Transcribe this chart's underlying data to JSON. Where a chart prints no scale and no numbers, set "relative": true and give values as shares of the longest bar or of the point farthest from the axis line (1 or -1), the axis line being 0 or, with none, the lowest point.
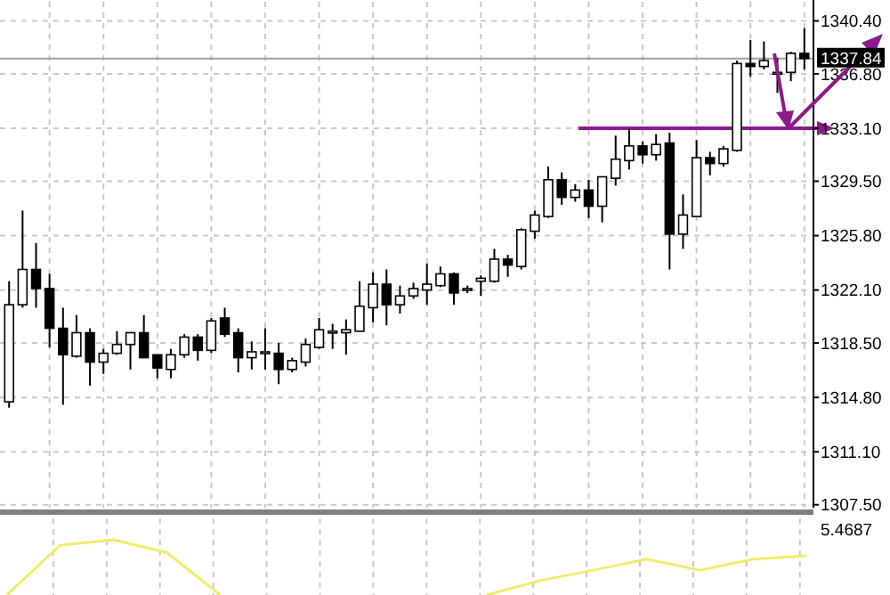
{
  "chart_data": [
    {
      "type": "candlestick",
      "categories": [
        null,
        null,
        null,
        null,
        null,
        null,
        null,
        null,
        null,
        null,
        null,
        null,
        null,
        null,
        null,
        null,
        null,
        null,
        null,
        null,
        null,
        null,
        null,
        null,
        null,
        null,
        null,
        null,
        null,
        null,
        null,
        null,
        null,
        null,
        null,
        null,
        null,
        null,
        null,
        null,
        null,
        null,
        null,
        null,
        null,
        null,
        null,
        null,
        null,
        null,
        null,
        null,
        null,
        null,
        null,
        null,
        null,
        null,
        null,
        null
      ],
      "ohlc": [
        [
          1314.5,
          1322.7,
          1314.1,
          1321.1
        ],
        [
          1321.1,
          1327.5,
          1320.9,
          1323.5
        ],
        [
          1323.5,
          1325.3,
          1320.9,
          1322.2
        ],
        [
          1322.2,
          1323.2,
          1318.2,
          1319.5
        ],
        [
          1319.5,
          1320.9,
          1314.3,
          1317.7
        ],
        [
          1317.6,
          1320.4,
          1317.5,
          1319.2
        ],
        [
          1319.2,
          1319.5,
          1315.6,
          1317.2
        ],
        [
          1317.2,
          1318.1,
          1316.4,
          1317.8
        ],
        [
          1317.8,
          1319.3,
          1317.7,
          1318.4
        ],
        [
          1318.4,
          1319.2,
          1316.7,
          1319.2
        ],
        [
          1319.2,
          1320.4,
          1317.5,
          1317.5
        ],
        [
          1317.7,
          1317.7,
          1316.1,
          1316.8
        ],
        [
          1316.7,
          1318.1,
          1316.1,
          1317.7
        ],
        [
          1317.7,
          1319.1,
          1317.5,
          1318.9
        ],
        [
          1318.9,
          1319.1,
          1317.3,
          1318.0
        ],
        [
          1318.0,
          1320.2,
          1317.8,
          1320.0
        ],
        [
          1320.2,
          1320.9,
          1318.9,
          1319.1
        ],
        [
          1319.2,
          1319.5,
          1316.5,
          1317.5
        ],
        [
          1317.5,
          1318.6,
          1316.7,
          1317.9
        ],
        [
          1317.8,
          1319.5,
          1316.7,
          1317.9
        ],
        [
          1317.8,
          1318.5,
          1315.7,
          1316.7
        ],
        [
          1316.7,
          1317.5,
          1316.5,
          1317.3
        ],
        [
          1317.2,
          1318.8,
          1316.9,
          1318.4
        ],
        [
          1318.2,
          1320.2,
          1318.1,
          1319.4
        ],
        [
          1319.2,
          1319.8,
          1318.1,
          1319.3
        ],
        [
          1319.2,
          1320.1,
          1317.7,
          1319.4
        ],
        [
          1319.3,
          1322.7,
          1319.3,
          1321.0
        ],
        [
          1320.9,
          1323.3,
          1319.9,
          1322.5
        ],
        [
          1322.5,
          1323.5,
          1319.7,
          1321.1
        ],
        [
          1321.1,
          1322.4,
          1320.5,
          1321.7
        ],
        [
          1321.7,
          1322.6,
          1321.5,
          1322.2
        ],
        [
          1322.1,
          1323.9,
          1321.1,
          1322.5
        ],
        [
          1322.4,
          1323.7,
          1322.3,
          1323.2
        ],
        [
          1323.2,
          1323.3,
          1321.1,
          1321.9
        ],
        [
          1322.1,
          1322.4,
          1321.9,
          1322.2
        ],
        [
          1322.7,
          1323.1,
          1321.7,
          1322.9
        ],
        [
          1322.7,
          1324.9,
          1322.6,
          1324.2
        ],
        [
          1324.2,
          1324.5,
          1323.0,
          1323.8
        ],
        [
          1323.7,
          1326.3,
          1323.5,
          1326.2
        ],
        [
          1326.1,
          1327.5,
          1325.6,
          1327.2
        ],
        [
          1327.1,
          1330.5,
          1327.0,
          1329.6
        ],
        [
          1329.6,
          1330.1,
          1327.9,
          1328.4
        ],
        [
          1328.4,
          1329.3,
          1328.1,
          1328.9
        ],
        [
          1328.9,
          1329.6,
          1327.0,
          1327.8
        ],
        [
          1327.8,
          1329.8,
          1326.7,
          1329.8
        ],
        [
          1329.7,
          1332.6,
          1329.2,
          1331.0
        ],
        [
          1330.9,
          1333.1,
          1330.3,
          1331.9
        ],
        [
          1331.9,
          1332.2,
          1330.7,
          1331.3
        ],
        [
          1331.3,
          1332.7,
          1330.9,
          1332.0
        ],
        [
          1332.1,
          1332.8,
          1323.5,
          1325.9
        ],
        [
          1325.9,
          1328.6,
          1324.9,
          1327.2
        ],
        [
          1327.1,
          1332.3,
          1327.1,
          1331.1
        ],
        [
          1331.1,
          1331.5,
          1329.9,
          1330.7
        ],
        [
          1330.7,
          1331.9,
          1330.5,
          1331.7
        ],
        [
          1331.6,
          1337.7,
          1331.5,
          1337.5
        ],
        [
          1337.5,
          1339.1,
          1336.6,
          1337.3
        ],
        [
          1337.3,
          1339.0,
          1337.1,
          1337.7
        ],
        [
          1336.8,
          1337.9,
          1335.5,
          1336.9
        ],
        [
          1336.9,
          1338.3,
          1336.3,
          1338.2
        ],
        [
          1338.2,
          1339.9,
          1337.1,
          1337.84
        ]
      ],
      "ylim": [
        1307.3,
        1341.7
      ],
      "yticks": [
        {
          "value": 1340.4,
          "label": "1340.40"
        },
        {
          "value": 1336.8,
          "label": "1336.80"
        },
        {
          "value": 1333.1,
          "label": "1333.10"
        },
        {
          "value": 1329.5,
          "label": "1329.50"
        },
        {
          "value": 1325.8,
          "label": "1325.80"
        },
        {
          "value": 1322.1,
          "label": "1322.10"
        },
        {
          "value": 1318.5,
          "label": "1318.50"
        },
        {
          "value": 1314.8,
          "label": "1314.80"
        },
        {
          "value": 1311.1,
          "label": "1311.10"
        },
        {
          "value": 1307.5,
          "label": "1307.50"
        }
      ],
      "ref_lines": [
        {
          "axis": "y",
          "value": 1337.84,
          "label": "1337.84",
          "color": "#a0a0a0"
        },
        {
          "axis": "y",
          "value": 1333.1,
          "color": "#8b1a8b"
        }
      ],
      "grid": true,
      "tick_labels": "y"
    },
    {
      "type": "line",
      "relative": true,
      "categories": [
        null,
        null,
        null,
        null,
        null,
        null,
        null,
        null,
        null,
        null,
        null,
        null,
        null,
        null,
        null,
        null
      ],
      "series": [
        {
          "color": "#f0ec6a",
          "values": [
            0,
            0.9,
            1,
            0.77,
            0,
            null,
            null,
            null,
            null,
            null,
            null,
            null,
            null,
            null,
            null,
            null
          ]
        },
        {
          "color": "#f0ec6a",
          "values": [
            null,
            null,
            null,
            null,
            null,
            null,
            null,
            null,
            null,
            0,
            0.26,
            0.45,
            0.65,
            0.45,
            0.65,
            0.71
          ]
        }
      ],
      "annotations": [
        "5.4687"
      ],
      "tick_labels": false
    }
  ]
}
